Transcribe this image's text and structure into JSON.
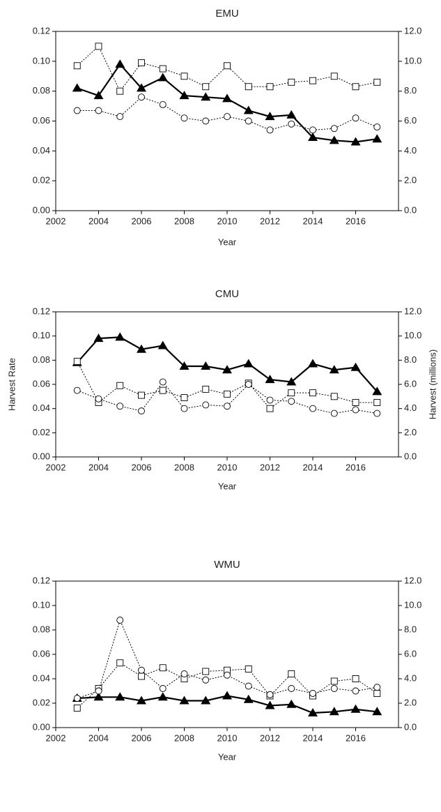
{
  "chart_data": [
    {
      "type": "line",
      "title": "EMU",
      "xlabel": "Year",
      "x": [
        2003,
        2004,
        2005,
        2006,
        2007,
        2008,
        2009,
        2010,
        2011,
        2012,
        2013,
        2014,
        2015,
        2016,
        2017
      ],
      "xlim": [
        2002,
        2018
      ],
      "xticks": [
        2002,
        2004,
        2006,
        2008,
        2010,
        2012,
        2014,
        2016
      ],
      "ylim": [
        0,
        0.12
      ],
      "yticks": [
        {
          "value": 0,
          "label": "0.00"
        },
        {
          "value": 0.02,
          "label": "0.02"
        },
        {
          "value": 0.04,
          "label": "0.04"
        },
        {
          "value": 0.06,
          "label": "0.06"
        },
        {
          "value": 0.08,
          "label": "0.08"
        },
        {
          "value": 0.1,
          "label": "0.10"
        },
        {
          "value": 0.12,
          "label": "0.12"
        }
      ],
      "y2lim": [
        0,
        12
      ],
      "y2ticks": [
        {
          "value": 0,
          "label": "0.0"
        },
        {
          "value": 2,
          "label": "2.0"
        },
        {
          "value": 4,
          "label": "4.0"
        },
        {
          "value": 6,
          "label": "6.0"
        },
        {
          "value": 8,
          "label": "8.0"
        },
        {
          "value": 10,
          "label": "10.0"
        },
        {
          "value": 12,
          "label": "12.0"
        }
      ],
      "series": [
        {
          "color": "#000000",
          "marker": "triangle",
          "dash": "solid",
          "axis": "y2",
          "values": [
            8.2,
            7.7,
            9.8,
            8.2,
            8.9,
            7.7,
            7.6,
            7.5,
            6.7,
            6.3,
            6.4,
            4.9,
            4.7,
            4.6,
            4.8
          ]
        },
        {
          "color": "#000000",
          "marker": "square",
          "dash": "dotted",
          "values": [
            0.097,
            0.11,
            0.08,
            0.099,
            0.095,
            0.09,
            0.083,
            0.097,
            0.083,
            0.083,
            0.086,
            0.087,
            0.09,
            0.083,
            0.086
          ]
        },
        {
          "color": "#000000",
          "marker": "circle",
          "dash": "dotted",
          "values": [
            0.067,
            0.067,
            0.063,
            0.076,
            0.071,
            0.062,
            0.06,
            0.063,
            0.06,
            0.054,
            0.058,
            0.054,
            0.055,
            0.062,
            0.056
          ]
        }
      ]
    },
    {
      "type": "line",
      "title": "CMU",
      "xlabel": "Year",
      "ylabel": "Harvest Rate",
      "y2label": "Harvest (millions)",
      "x": [
        2003,
        2004,
        2005,
        2006,
        2007,
        2008,
        2009,
        2010,
        2011,
        2012,
        2013,
        2014,
        2015,
        2016,
        2017
      ],
      "xlim": [
        2002,
        2018
      ],
      "xticks": [
        2002,
        2004,
        2006,
        2008,
        2010,
        2012,
        2014,
        2016
      ],
      "ylim": [
        0,
        0.12
      ],
      "yticks": [
        {
          "value": 0,
          "label": "0.00"
        },
        {
          "value": 0.02,
          "label": "0.02"
        },
        {
          "value": 0.04,
          "label": "0.04"
        },
        {
          "value": 0.06,
          "label": "0.06"
        },
        {
          "value": 0.08,
          "label": "0.08"
        },
        {
          "value": 0.1,
          "label": "0.10"
        },
        {
          "value": 0.12,
          "label": "0.12"
        }
      ],
      "y2lim": [
        0,
        12
      ],
      "y2ticks": [
        {
          "value": 0,
          "label": "0.0"
        },
        {
          "value": 2,
          "label": "2.0"
        },
        {
          "value": 4,
          "label": "4.0"
        },
        {
          "value": 6,
          "label": "6.0"
        },
        {
          "value": 8,
          "label": "8.0"
        },
        {
          "value": 10,
          "label": "10.0"
        },
        {
          "value": 12,
          "label": "12.0"
        }
      ],
      "series": [
        {
          "color": "#000000",
          "marker": "triangle",
          "dash": "solid",
          "axis": "y2",
          "values": [
            7.8,
            9.8,
            9.9,
            8.9,
            9.2,
            7.5,
            7.5,
            7.2,
            7.7,
            6.4,
            6.2,
            7.7,
            7.2,
            7.4,
            5.4
          ]
        },
        {
          "color": "#000000",
          "marker": "square",
          "dash": "dotted",
          "values": [
            0.079,
            0.045,
            0.059,
            0.051,
            0.055,
            0.049,
            0.056,
            0.052,
            0.061,
            0.04,
            0.053,
            0.053,
            0.05,
            0.045,
            0.045
          ]
        },
        {
          "color": "#000000",
          "marker": "circle",
          "dash": "dotted",
          "values": [
            0.055,
            0.048,
            0.042,
            0.038,
            0.062,
            0.04,
            0.043,
            0.042,
            0.06,
            0.047,
            0.046,
            0.04,
            0.036,
            0.039,
            0.036
          ]
        }
      ]
    },
    {
      "type": "line",
      "title": "WMU",
      "xlabel": "Year",
      "x": [
        2003,
        2004,
        2005,
        2006,
        2007,
        2008,
        2009,
        2010,
        2011,
        2012,
        2013,
        2014,
        2015,
        2016,
        2017
      ],
      "xlim": [
        2002,
        2018
      ],
      "xticks": [
        2002,
        2004,
        2006,
        2008,
        2010,
        2012,
        2014,
        2016
      ],
      "ylim": [
        0,
        0.12
      ],
      "yticks": [
        {
          "value": 0,
          "label": "0.00"
        },
        {
          "value": 0.02,
          "label": "0.02"
        },
        {
          "value": 0.04,
          "label": "0.04"
        },
        {
          "value": 0.06,
          "label": "0.06"
        },
        {
          "value": 0.08,
          "label": "0.08"
        },
        {
          "value": 0.1,
          "label": "0.10"
        },
        {
          "value": 0.12,
          "label": "0.12"
        }
      ],
      "y2lim": [
        0,
        12
      ],
      "y2ticks": [
        {
          "value": 0,
          "label": "0.0"
        },
        {
          "value": 2,
          "label": "2.0"
        },
        {
          "value": 4,
          "label": "4.0"
        },
        {
          "value": 6,
          "label": "6.0"
        },
        {
          "value": 8,
          "label": "8.0"
        },
        {
          "value": 10,
          "label": "10.0"
        },
        {
          "value": 12,
          "label": "12.0"
        }
      ],
      "series": [
        {
          "color": "#000000",
          "marker": "triangle",
          "dash": "solid",
          "axis": "y2",
          "values": [
            2.4,
            2.5,
            2.5,
            2.2,
            2.5,
            2.2,
            2.2,
            2.6,
            2.3,
            1.8,
            1.9,
            1.2,
            1.3,
            1.5,
            1.3
          ]
        },
        {
          "color": "#000000",
          "marker": "square",
          "dash": "dotted",
          "values": [
            0.016,
            0.032,
            0.053,
            0.042,
            0.049,
            0.04,
            0.046,
            0.047,
            0.048,
            0.026,
            0.044,
            0.026,
            0.038,
            0.04,
            0.028
          ]
        },
        {
          "color": "#000000",
          "marker": "circle",
          "dash": "dotted",
          "values": [
            0.024,
            0.03,
            0.088,
            0.047,
            0.032,
            0.044,
            0.039,
            0.043,
            0.034,
            0.027,
            0.032,
            0.028,
            0.032,
            0.03,
            0.033
          ]
        }
      ]
    }
  ]
}
